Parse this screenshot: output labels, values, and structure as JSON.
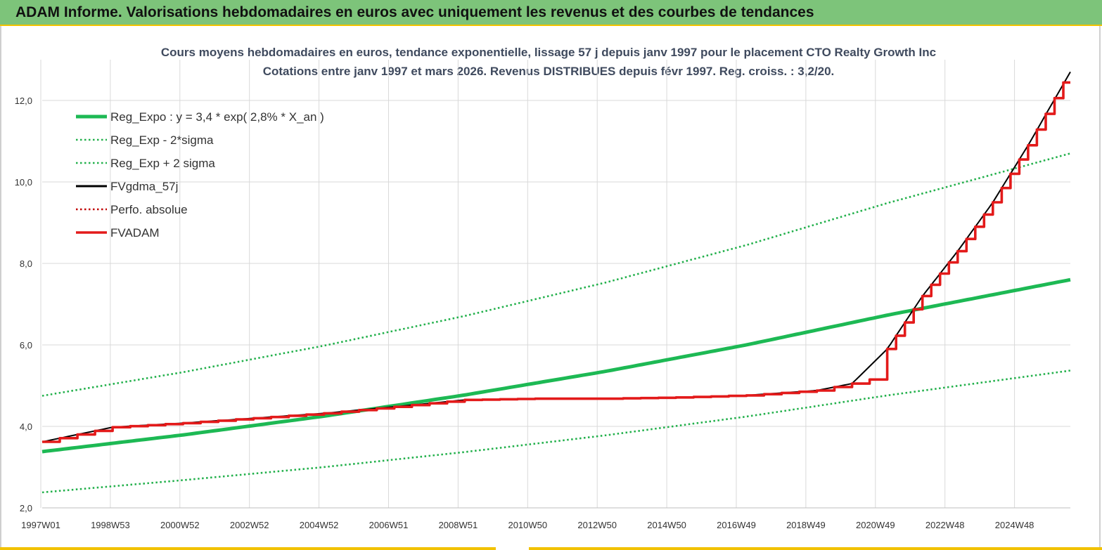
{
  "header": {
    "title": "ADAM Informe. Valorisations hebdomadaires en euros avec uniquement les revenus et des courbes de tendances"
  },
  "chart_data": {
    "type": "line",
    "title": [
      "Cours moyens hebdomadaires en euros, tendance exponentielle, lissage 57 j depuis janv 1997 pour le placement CTO Realty Growth Inc",
      "Cotations entre janv 1997 et mars 2026. Revenus DISTRIBUES depuis févr 1997. Reg. croiss. : 3,2/20."
    ],
    "xlabel": "",
    "ylabel": "",
    "x_tick_labels": [
      "1997W01",
      "1998W53",
      "2000W52",
      "2002W52",
      "2004W52",
      "2006W51",
      "2008W51",
      "2010W50",
      "2012W50",
      "2014W50",
      "2016W49",
      "2018W49",
      "2020W49",
      "2022W48",
      "2024W48"
    ],
    "y_tick_labels": [
      "2,0",
      "4,0",
      "6,0",
      "8,0",
      "10,0",
      "12,0"
    ],
    "xlim": [
      1997.0,
      2026.2
    ],
    "ylim": [
      2.0,
      13.0
    ],
    "grid": true,
    "legend_position": "top-left",
    "colors": {
      "reg_expo": "#1db954",
      "band": "#22b04b",
      "fvgdma": "#000000",
      "perfo": "#c00000",
      "fvadam": "#e31a1a"
    },
    "series": [
      {
        "name": "Reg_Expo : y = 3,4 * exp( 2,8% *  X_an )",
        "style": "thick-solid",
        "color": "#1db954",
        "x": [
          1997.0,
          2001.0,
          2005.0,
          2009.0,
          2013.0,
          2017.0,
          2021.0,
          2026.2
        ],
        "y": [
          3.38,
          3.79,
          4.25,
          4.77,
          5.35,
          6.0,
          6.73,
          7.6
        ]
      },
      {
        "name": "Reg_Exp - 2*sigma",
        "style": "dotted",
        "color": "#22b04b",
        "x": [
          1997.0,
          2001.0,
          2005.0,
          2009.0,
          2013.0,
          2017.0,
          2021.0,
          2026.2
        ],
        "y": [
          2.38,
          2.68,
          3.0,
          3.37,
          3.78,
          4.24,
          4.76,
          5.37
        ]
      },
      {
        "name": "Reg_Exp + 2 sigma",
        "style": "dotted",
        "color": "#22b04b",
        "x": [
          1997.0,
          2001.0,
          2005.0,
          2009.0,
          2013.0,
          2017.0,
          2021.0,
          2026.2
        ],
        "y": [
          4.75,
          5.33,
          5.98,
          6.71,
          7.53,
          8.45,
          9.48,
          10.7
        ]
      },
      {
        "name": "FVgdma_57j",
        "style": "solid",
        "color": "#000000",
        "x": [
          1997.0,
          1998.0,
          1999.0,
          2001.0,
          2003.0,
          2005.0,
          2007.0,
          2009.0,
          2011.0,
          2013.0,
          2015.0,
          2017.0,
          2019.0,
          2020.0,
          2021.0,
          2022.0,
          2023.0,
          2024.0,
          2025.0,
          2026.2
        ],
        "y": [
          3.62,
          3.8,
          3.98,
          4.08,
          4.2,
          4.32,
          4.48,
          4.65,
          4.68,
          4.68,
          4.71,
          4.76,
          4.88,
          5.05,
          5.9,
          7.2,
          8.3,
          9.5,
          10.9,
          12.7
        ]
      },
      {
        "name": "Perfo. absolue",
        "style": "dotted",
        "color": "#c00000",
        "x": [],
        "y": []
      },
      {
        "name": "FVADAM",
        "style": "thick-step",
        "color": "#e31a1a",
        "x": [
          1997.0,
          1998.0,
          1999.0,
          2001.0,
          2003.0,
          2005.0,
          2007.0,
          2009.0,
          2011.0,
          2013.0,
          2015.0,
          2017.0,
          2019.0,
          2020.0,
          2020.5,
          2021.0,
          2022.0,
          2023.0,
          2024.0,
          2025.0,
          2026.2
        ],
        "y": [
          3.62,
          3.8,
          3.98,
          4.08,
          4.2,
          4.32,
          4.48,
          4.65,
          4.68,
          4.68,
          4.71,
          4.76,
          4.88,
          5.05,
          5.15,
          5.9,
          7.2,
          8.3,
          9.5,
          10.9,
          12.75
        ]
      }
    ]
  }
}
